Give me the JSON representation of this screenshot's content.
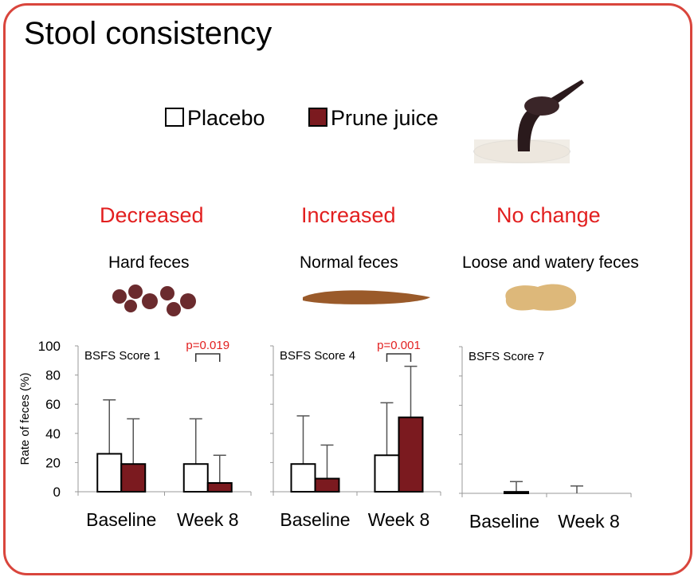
{
  "title": "Stool consistency",
  "legend": {
    "placebo": "Placebo",
    "prune": "Prune juice"
  },
  "colors": {
    "placebo": "#ffffff",
    "prune": "#7b1a1f",
    "frame": "#d9453c",
    "highlight": "#e21f1f"
  },
  "sections": [
    {
      "change": "Decreased",
      "type": "Hard feces"
    },
    {
      "change": "Increased",
      "type": "Normal feces"
    },
    {
      "change": "No change",
      "type": "Loose and watery feces"
    }
  ],
  "chart_data": [
    {
      "type": "bar",
      "title": "BSFS Score 1",
      "ylabel": "Rate of feces (%)",
      "ylim": [
        0,
        100
      ],
      "yticks": [
        0,
        20,
        40,
        60,
        80,
        100
      ],
      "categories": [
        "Baseline",
        "Week 8"
      ],
      "series": [
        {
          "name": "Placebo",
          "values": [
            26,
            19
          ],
          "error_upper": [
            63,
            50
          ]
        },
        {
          "name": "Prune juice",
          "values": [
            19,
            6
          ],
          "error_upper": [
            50,
            25
          ]
        }
      ],
      "annotation": {
        "category": "Week 8",
        "text": "p=0.019"
      }
    },
    {
      "type": "bar",
      "title": "BSFS Score 4",
      "ylim": [
        0,
        100
      ],
      "categories": [
        "Baseline",
        "Week 8"
      ],
      "series": [
        {
          "name": "Placebo",
          "values": [
            19,
            25
          ],
          "error_upper": [
            52,
            61
          ]
        },
        {
          "name": "Prune juice",
          "values": [
            9,
            51
          ],
          "error_upper": [
            32,
            86
          ]
        }
      ],
      "annotation": {
        "category": "Week 8",
        "text": "p=0.001"
      }
    },
    {
      "type": "bar",
      "title": "BSFS Score 7",
      "ylim": [
        0,
        100
      ],
      "categories": [
        "Baseline",
        "Week 8"
      ],
      "series": [
        {
          "name": "Placebo",
          "values": [
            0,
            0
          ],
          "error_upper": [
            0,
            5
          ]
        },
        {
          "name": "Prune juice",
          "values": [
            1,
            0
          ],
          "error_upper": [
            8,
            0
          ]
        }
      ]
    }
  ]
}
